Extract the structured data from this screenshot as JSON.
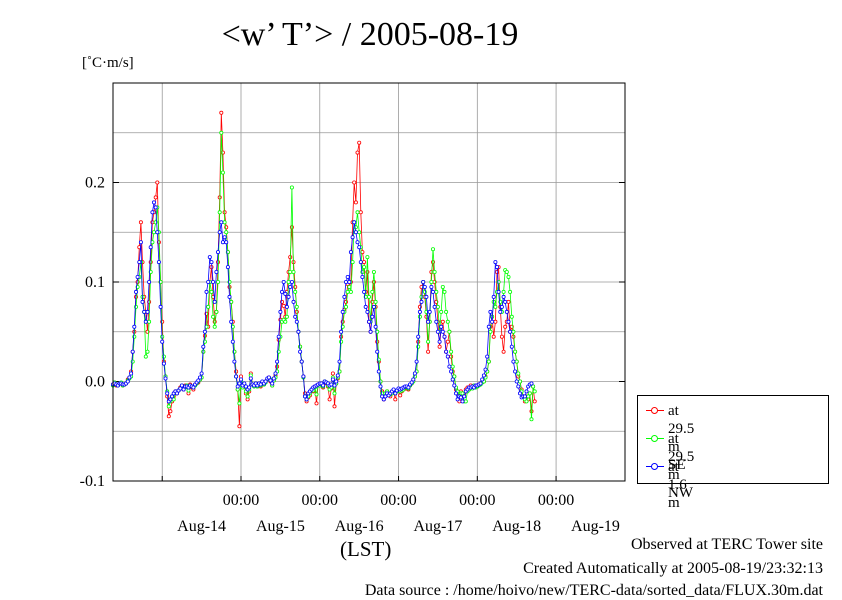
{
  "chart_data": {
    "type": "line",
    "title": "<w’ T’> / 2005-08-19",
    "unit_label": "[˚C·m/s]",
    "xlabel": "(LST)",
    "ylim": [
      -0.1,
      0.3
    ],
    "xlim": [
      "2005-08-13 09:00",
      "2005-08-19 21:00"
    ],
    "y_ticks": [
      -0.1,
      0.0,
      0.1,
      0.2
    ],
    "y_tick_labels": [
      "-0.1",
      "0.0",
      "0.1",
      "0.2"
    ],
    "x_time_ticks": [
      "00:00",
      "00:00",
      "00:00",
      "00:00",
      "00:00"
    ],
    "x_date_labels": [
      "Aug-14",
      "Aug-15",
      "Aug-16",
      "Aug-17",
      "Aug-18",
      "Aug-19"
    ],
    "grid": true,
    "legend_position": "bottom-right, outside plot",
    "x_start": "2005-08-13 09:00",
    "series": [
      {
        "name": "at 29.5 m SE",
        "color": "#ff0000",
        "values": [
          -0.003,
          -0.001,
          -0.004,
          -0.003,
          -0.002,
          -0.002,
          -0.004,
          -0.003,
          -0.002,
          0.002,
          0.004,
          0.01,
          0.03,
          0.05,
          0.085,
          0.1,
          0.135,
          0.16,
          0.12,
          0.085,
          0.07,
          0.05,
          0.08,
          0.12,
          0.16,
          0.17,
          0.185,
          0.2,
          0.14,
          0.1,
          0.06,
          0.02,
          0.005,
          -0.015,
          -0.035,
          -0.03,
          -0.02,
          -0.015,
          -0.01,
          -0.012,
          -0.009,
          -0.006,
          -0.005,
          -0.008,
          -0.004,
          -0.004,
          -0.012,
          -0.003,
          -0.006,
          -0.008,
          -0.003,
          -0.002,
          -0.001,
          0.002,
          0.004,
          0.03,
          0.046,
          0.068,
          0.055,
          0.1,
          0.115,
          0.085,
          0.06,
          0.07,
          0.12,
          0.185,
          0.27,
          0.23,
          0.17,
          0.155,
          0.13,
          0.095,
          0.08,
          0.06,
          0.03,
          0.01,
          -0.008,
          -0.045,
          0.005,
          -0.005,
          -0.004,
          -0.012,
          -0.018,
          -0.01,
          0.008,
          -0.003,
          -0.004,
          -0.002,
          -0.005,
          -0.003,
          -0.005,
          -0.002,
          -0.003,
          0.0,
          0.002,
          0.004,
          0.0,
          -0.004,
          0.001,
          0.006,
          0.015,
          0.042,
          0.062,
          0.08,
          0.076,
          0.065,
          0.09,
          0.11,
          0.125,
          0.155,
          0.12,
          0.095,
          0.07,
          0.05,
          0.035,
          0.02,
          0.005,
          -0.012,
          -0.02,
          -0.016,
          -0.014,
          -0.008,
          -0.01,
          -0.005,
          -0.022,
          -0.003,
          -0.004,
          -0.004,
          -0.006,
          0.0,
          -0.002,
          -0.005,
          -0.018,
          -0.007,
          0.008,
          -0.025,
          -0.002,
          0.003,
          0.01,
          0.045,
          0.06,
          0.072,
          0.08,
          0.098,
          0.095,
          0.1,
          0.16,
          0.2,
          0.18,
          0.23,
          0.24,
          0.17,
          0.13,
          0.12,
          0.09,
          0.11,
          0.06,
          0.05,
          0.08,
          0.1,
          0.075,
          0.04,
          0.02,
          0.0,
          -0.01,
          -0.018,
          -0.012,
          -0.01,
          -0.012,
          -0.015,
          -0.012,
          -0.01,
          -0.018,
          -0.01,
          -0.008,
          -0.014,
          -0.01,
          -0.008,
          -0.007,
          -0.007,
          -0.008,
          -0.004,
          -0.002,
          0.001,
          0.005,
          0.01,
          0.04,
          0.075,
          0.095,
          0.1,
          0.085,
          0.065,
          0.03,
          0.06,
          0.11,
          0.12,
          0.1,
          0.08,
          0.06,
          0.035,
          0.055,
          0.06,
          0.045,
          0.03,
          0.04,
          0.05,
          0.025,
          0.01,
          0.005,
          -0.008,
          -0.012,
          -0.02,
          -0.01,
          -0.015,
          -0.012,
          -0.008,
          -0.006,
          -0.008,
          -0.004,
          -0.006,
          -0.004,
          -0.004,
          -0.005,
          -0.003,
          -0.002,
          0.0,
          0.0,
          0.005,
          0.01,
          0.02,
          0.055,
          0.065,
          0.045,
          0.06,
          0.11,
          0.115,
          0.075,
          0.045,
          0.03,
          0.055,
          0.06,
          0.08,
          0.05,
          0.055,
          0.045,
          0.03,
          0.02,
          0.005,
          0.0,
          -0.008,
          -0.015,
          -0.02,
          -0.015,
          -0.018,
          -0.012,
          -0.03,
          -0.005,
          -0.02
        ]
      },
      {
        "name": "at 29.5 m NW",
        "color": "#00ff00",
        "values": [
          -0.004,
          -0.001,
          -0.003,
          -0.004,
          -0.002,
          -0.001,
          -0.004,
          -0.003,
          -0.002,
          0.001,
          0.003,
          0.005,
          0.02,
          0.045,
          0.075,
          0.095,
          0.105,
          0.12,
          0.085,
          0.07,
          0.025,
          0.03,
          0.06,
          0.11,
          0.14,
          0.15,
          0.16,
          0.175,
          0.15,
          0.1,
          0.045,
          0.025,
          0.005,
          -0.01,
          -0.025,
          -0.02,
          -0.015,
          -0.018,
          -0.012,
          -0.01,
          -0.009,
          -0.007,
          -0.004,
          -0.006,
          -0.006,
          -0.004,
          -0.009,
          -0.004,
          -0.005,
          -0.006,
          -0.004,
          -0.002,
          0.0,
          0.002,
          0.004,
          0.03,
          0.04,
          0.055,
          0.075,
          0.1,
          0.09,
          0.065,
          0.055,
          0.07,
          0.1,
          0.17,
          0.25,
          0.21,
          0.16,
          0.15,
          0.13,
          0.1,
          0.08,
          0.055,
          0.03,
          0.005,
          -0.008,
          -0.022,
          0.0,
          -0.006,
          -0.003,
          -0.01,
          -0.015,
          -0.008,
          0.006,
          -0.003,
          -0.005,
          -0.002,
          -0.005,
          -0.003,
          -0.004,
          -0.001,
          -0.003,
          -0.001,
          0.002,
          0.003,
          0.002,
          -0.004,
          0.001,
          0.004,
          0.01,
          0.03,
          0.045,
          0.06,
          0.062,
          0.06,
          0.065,
          0.1,
          0.11,
          0.195,
          0.11,
          0.09,
          0.075,
          0.05,
          0.035,
          0.02,
          0.004,
          -0.015,
          -0.018,
          -0.015,
          -0.012,
          -0.008,
          -0.009,
          -0.006,
          -0.013,
          -0.004,
          -0.004,
          -0.003,
          -0.005,
          0.0,
          -0.001,
          -0.004,
          -0.008,
          -0.006,
          0.004,
          -0.012,
          -0.002,
          0.004,
          0.01,
          0.04,
          0.055,
          0.07,
          0.075,
          0.09,
          0.095,
          0.09,
          0.12,
          0.16,
          0.155,
          0.17,
          0.15,
          0.135,
          0.11,
          0.115,
          0.085,
          0.125,
          0.085,
          0.06,
          0.09,
          0.11,
          0.08,
          0.05,
          0.022,
          0.0,
          -0.012,
          -0.016,
          -0.012,
          -0.01,
          -0.012,
          -0.013,
          -0.012,
          -0.01,
          -0.012,
          -0.01,
          -0.008,
          -0.01,
          -0.009,
          -0.008,
          -0.006,
          -0.006,
          -0.007,
          -0.004,
          -0.002,
          0.0,
          0.005,
          0.01,
          0.035,
          0.065,
          0.085,
          0.1,
          0.09,
          0.07,
          0.04,
          0.06,
          0.1,
          0.133,
          0.11,
          0.09,
          0.075,
          0.05,
          0.07,
          0.095,
          0.09,
          0.07,
          0.06,
          0.05,
          0.03,
          0.015,
          0.005,
          -0.006,
          -0.01,
          -0.015,
          -0.012,
          -0.012,
          -0.02,
          -0.02,
          -0.01,
          -0.008,
          -0.006,
          -0.007,
          -0.004,
          -0.006,
          -0.005,
          -0.004,
          -0.003,
          -0.001,
          0.0,
          0.004,
          0.01,
          0.02,
          0.05,
          0.065,
          0.08,
          0.075,
          0.09,
          0.1,
          0.08,
          0.07,
          0.09,
          0.112,
          0.11,
          0.105,
          0.09,
          0.065,
          0.05,
          0.03,
          0.02,
          0.008,
          0.0,
          -0.01,
          -0.015,
          -0.018,
          -0.02,
          -0.015,
          -0.012,
          -0.038,
          -0.005,
          -0.01
        ]
      },
      {
        "name": "at 1.6 m",
        "color": "#0000ff",
        "values": [
          -0.003,
          -0.002,
          -0.003,
          -0.004,
          -0.002,
          -0.002,
          -0.003,
          -0.003,
          -0.002,
          0.0,
          0.004,
          0.008,
          0.03,
          0.055,
          0.09,
          0.105,
          0.12,
          0.14,
          0.08,
          0.07,
          0.06,
          0.07,
          0.1,
          0.135,
          0.17,
          0.18,
          0.175,
          0.15,
          0.12,
          0.075,
          0.04,
          0.018,
          0.003,
          -0.012,
          -0.02,
          -0.018,
          -0.015,
          -0.012,
          -0.01,
          -0.012,
          -0.009,
          -0.007,
          -0.004,
          -0.008,
          -0.005,
          -0.005,
          -0.006,
          -0.004,
          -0.005,
          -0.006,
          -0.003,
          -0.001,
          0.001,
          0.004,
          0.008,
          0.035,
          0.05,
          0.09,
          0.1,
          0.125,
          0.12,
          0.1,
          0.08,
          0.11,
          0.13,
          0.15,
          0.16,
          0.14,
          0.145,
          0.14,
          0.115,
          0.085,
          0.06,
          0.04,
          0.02,
          0.005,
          -0.005,
          -0.002,
          0.002,
          -0.004,
          -0.002,
          -0.005,
          -0.008,
          -0.006,
          0.003,
          -0.003,
          -0.004,
          -0.002,
          -0.004,
          -0.002,
          -0.003,
          0.0,
          -0.002,
          0.0,
          0.003,
          0.004,
          0.001,
          -0.002,
          0.003,
          0.008,
          0.02,
          0.045,
          0.07,
          0.09,
          0.1,
          0.088,
          0.075,
          0.085,
          0.095,
          0.1,
          0.08,
          0.065,
          0.06,
          0.05,
          0.03,
          0.02,
          0.005,
          -0.015,
          -0.018,
          -0.012,
          -0.01,
          -0.008,
          -0.006,
          -0.005,
          -0.004,
          -0.003,
          -0.002,
          -0.002,
          -0.004,
          0.0,
          -0.001,
          -0.002,
          -0.004,
          -0.003,
          0.002,
          -0.004,
          0.0,
          0.006,
          0.02,
          0.05,
          0.07,
          0.085,
          0.1,
          0.105,
          0.1,
          0.13,
          0.145,
          0.16,
          0.15,
          0.14,
          0.135,
          0.12,
          0.105,
          0.09,
          0.075,
          0.07,
          0.06,
          0.05,
          0.065,
          0.075,
          0.055,
          0.03,
          0.01,
          -0.005,
          -0.015,
          -0.018,
          -0.015,
          -0.012,
          -0.014,
          -0.012,
          -0.01,
          -0.008,
          -0.012,
          -0.009,
          -0.007,
          -0.008,
          -0.007,
          -0.006,
          -0.005,
          -0.005,
          -0.006,
          -0.003,
          -0.001,
          0.002,
          0.008,
          0.02,
          0.045,
          0.07,
          0.08,
          0.1,
          0.095,
          0.085,
          0.06,
          0.07,
          0.095,
          0.09,
          0.075,
          0.06,
          0.05,
          0.04,
          0.055,
          0.05,
          0.045,
          0.03,
          0.025,
          0.015,
          0.01,
          0.002,
          -0.004,
          -0.012,
          -0.018,
          -0.015,
          -0.016,
          -0.02,
          -0.015,
          -0.01,
          -0.008,
          -0.006,
          -0.006,
          -0.005,
          -0.006,
          -0.004,
          -0.004,
          -0.003,
          -0.002,
          0.002,
          0.006,
          0.012,
          0.025,
          0.055,
          0.07,
          0.06,
          0.085,
          0.12,
          0.115,
          0.09,
          0.07,
          0.075,
          0.085,
          0.08,
          0.07,
          0.06,
          0.05,
          0.035,
          0.02,
          0.01,
          0.0,
          -0.005,
          -0.012,
          -0.016,
          -0.015,
          -0.015,
          -0.01,
          -0.005,
          -0.003,
          -0.002
        ]
      }
    ]
  },
  "legend": [
    {
      "label": "at 29.5 m SE",
      "color": "#ff0000"
    },
    {
      "label": "at 29.5 m NW",
      "color": "#00ff00"
    },
    {
      "label": "at 1.6 m",
      "color": "#0000ff"
    }
  ],
  "footer": {
    "observed": "Observed at TERC Tower site",
    "created": "Created Automatically at 2005-08-19/23:32:13",
    "source": "Data source : /home/hoivo/new/TERC-data/sorted_data/FLUX.30m.dat"
  }
}
